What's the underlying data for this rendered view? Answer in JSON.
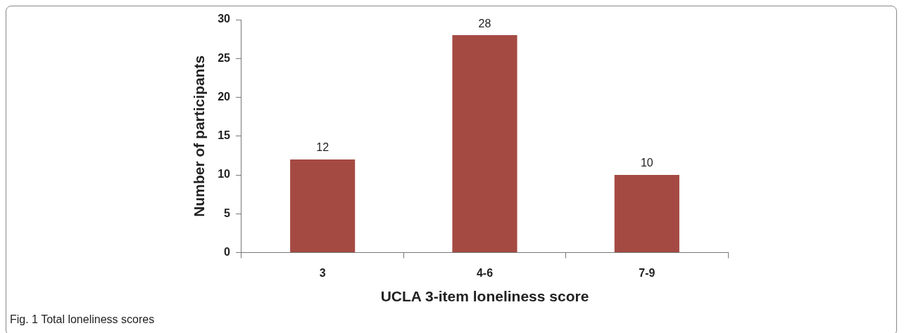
{
  "chart_data": {
    "type": "bar",
    "categories": [
      "3",
      "4-6",
      "7-9"
    ],
    "values": [
      12,
      28,
      10
    ],
    "color": "#a44a43",
    "xlabel": "UCLA 3-item loneliness score",
    "ylabel": "Number of participants",
    "ylim": [
      0,
      30
    ],
    "yticks": [
      0,
      5,
      10,
      15,
      20,
      25,
      30
    ],
    "grid": false,
    "legend": false,
    "data_labels": true,
    "annotations": [
      "Fig. 1  Total loneliness scores"
    ]
  }
}
